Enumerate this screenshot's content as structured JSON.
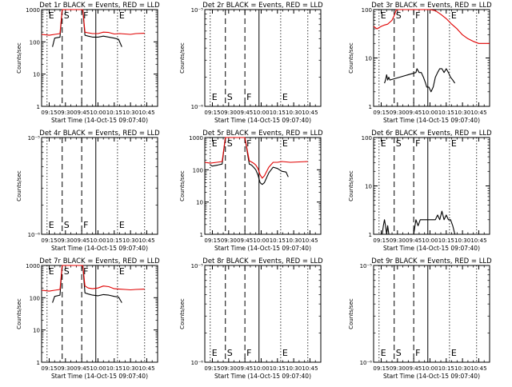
{
  "colors": {
    "events": "#000000",
    "lld": "#e00000",
    "axis": "#000000"
  },
  "common": {
    "xlabel": "Start Time (14-Oct-15 09:07:40)",
    "ylabel": "Counts/sec",
    "x_ticks": [
      "09:15",
      "09:30",
      "09:45",
      "10:00",
      "10:15",
      "10:30",
      "10:45"
    ],
    "x_ticks_min": [
      0,
      15,
      30,
      45,
      60,
      75,
      90
    ],
    "xlim_min": [
      -7,
      100
    ],
    "markers": [
      {
        "label": "E",
        "t": -2,
        "style": "dotted"
      },
      {
        "label": "S",
        "t": 12,
        "style": "dashed"
      },
      {
        "label": "F",
        "t": 30,
        "style": "dashed"
      },
      {
        "label": "",
        "t": 43,
        "style": "solid"
      },
      {
        "label": "E",
        "t": 63,
        "style": "dotted"
      },
      {
        "label": "",
        "t": 88,
        "style": "dotted"
      }
    ]
  },
  "chart_data": [
    {
      "type": "line",
      "title": "Det 1r BLACK = Events, RED = LLD",
      "yscale": "log",
      "ylim": [
        1,
        1000
      ],
      "y_ticks": [
        "1",
        "10",
        "100",
        "1000"
      ],
      "y_tick_values": [
        1,
        10,
        100,
        1000
      ],
      "series": [
        {
          "name": "Events",
          "color": "#000000",
          "x": [
            3,
            5,
            10,
            12,
            14,
            16,
            18,
            20,
            22,
            24,
            28,
            31,
            33,
            36,
            40,
            45,
            50,
            55,
            60,
            64,
            67
          ],
          "y": [
            70,
            130,
            140,
            1000,
            1000,
            1000,
            1000,
            1000,
            1000,
            1000,
            1000,
            1000,
            160,
            150,
            140,
            140,
            150,
            140,
            130,
            120,
            70
          ]
        },
        {
          "name": "LLD",
          "color": "#e00000",
          "x": [
            -7,
            0,
            5,
            10,
            12,
            14,
            20,
            25,
            28,
            31,
            33,
            36,
            40,
            45,
            50,
            55,
            60,
            65,
            70,
            75,
            80,
            88
          ],
          "y": [
            170,
            160,
            170,
            180,
            1000,
            1000,
            1000,
            1000,
            1000,
            1000,
            200,
            190,
            180,
            180,
            200,
            195,
            175,
            180,
            175,
            170,
            180,
            185
          ]
        }
      ]
    },
    {
      "type": "line",
      "title": "Det 2r BLACK = Events, RED = LLD",
      "yscale": "log",
      "ylim": [
        1e-06,
        1e-05
      ],
      "y_ticks": [
        "10⁻⁶",
        "10⁻⁵"
      ],
      "y_tick_values": [
        1e-06,
        1e-05
      ],
      "series": []
    },
    {
      "type": "line",
      "title": "Det 3r BLACK = Events, RED = LLD",
      "yscale": "log",
      "ylim": [
        1,
        100
      ],
      "y_ticks": [
        "1",
        "10",
        "100"
      ],
      "y_tick_values": [
        1,
        10,
        100
      ],
      "series": [
        {
          "name": "Events",
          "color": "#000000",
          "x": [
            3,
            4,
            5,
            6,
            7,
            8,
            32,
            33,
            35,
            37,
            39,
            41,
            42,
            44,
            46,
            48,
            50,
            52,
            54,
            56,
            58,
            60,
            62,
            64,
            66,
            68
          ],
          "y": [
            3,
            3.5,
            4.5,
            3.5,
            4,
            3.5,
            5,
            6,
            5,
            5,
            4,
            3,
            2.5,
            2.5,
            2,
            2.5,
            4,
            5,
            6,
            6,
            5,
            6,
            5,
            4,
            3.5,
            3
          ]
        },
        {
          "name": "LLD",
          "color": "#e00000",
          "x": [
            -7,
            -4,
            0,
            3,
            6,
            10,
            12,
            14,
            20,
            30,
            32,
            36,
            40,
            45,
            50,
            55,
            60,
            65,
            70,
            75,
            80,
            85,
            90,
            95,
            100
          ],
          "y": [
            45,
            40,
            45,
            48,
            50,
            60,
            75,
            100,
            100,
            100,
            100,
            100,
            100,
            100,
            95,
            80,
            65,
            50,
            40,
            30,
            25,
            22,
            20,
            20,
            20
          ]
        }
      ]
    },
    {
      "type": "line",
      "title": "Det 4r BLACK = Events, RED = LLD",
      "yscale": "log",
      "ylim": [
        1e-06,
        1e-05
      ],
      "y_ticks": [
        "10⁻⁶",
        "10⁻⁵"
      ],
      "y_tick_values": [
        1e-06,
        1e-05
      ],
      "series": []
    },
    {
      "type": "line",
      "title": "Det 5r BLACK = Events, RED = LLD",
      "yscale": "log",
      "ylim": [
        1,
        1000
      ],
      "y_ticks": [
        "1",
        "10",
        "100",
        "1000"
      ],
      "y_tick_values": [
        1,
        10,
        100,
        1000
      ],
      "series": [
        {
          "name": "Events",
          "color": "#000000",
          "x": [
            -2,
            0,
            5,
            9,
            12,
            20,
            28,
            30,
            34,
            36,
            38,
            40,
            42,
            44,
            46,
            48,
            52,
            56,
            60,
            64,
            68,
            70
          ],
          "y": [
            140,
            130,
            140,
            150,
            1000,
            1000,
            1000,
            1000,
            150,
            140,
            120,
            100,
            70,
            40,
            35,
            40,
            80,
            120,
            110,
            90,
            85,
            60
          ]
        },
        {
          "name": "LLD",
          "color": "#e00000",
          "x": [
            -7,
            -2,
            4,
            9,
            12,
            20,
            28,
            30,
            34,
            36,
            38,
            40,
            42,
            44,
            46,
            48,
            52,
            56,
            60,
            64,
            68,
            72,
            80,
            88
          ],
          "y": [
            170,
            160,
            170,
            180,
            1000,
            1000,
            1000,
            1000,
            190,
            175,
            160,
            140,
            110,
            70,
            55,
            65,
            120,
            170,
            170,
            180,
            175,
            170,
            175,
            180
          ]
        }
      ]
    },
    {
      "type": "line",
      "title": "Det 6r BLACK = Events, RED = LLD",
      "yscale": "log",
      "ylim": [
        1,
        100
      ],
      "y_ticks": [
        "1",
        "10",
        "100"
      ],
      "y_tick_values": [
        1,
        10,
        100
      ],
      "series": [
        {
          "name": "Events",
          "color": "#000000",
          "x": [
            1,
            2,
            3,
            4,
            5,
            6,
            7,
            8,
            10,
            15,
            20,
            25,
            30,
            32,
            34,
            36,
            40,
            45,
            50,
            52,
            54,
            56,
            58,
            60,
            62,
            64,
            66,
            68,
            70
          ],
          "y": [
            1,
            1.5,
            2,
            1.5,
            1,
            1.5,
            1,
            1,
            1,
            1,
            1,
            1,
            1,
            2,
            1.5,
            2,
            2,
            2,
            2,
            2.5,
            2,
            3,
            2,
            2.5,
            2,
            2,
            1.5,
            1,
            1
          ]
        }
      ]
    },
    {
      "type": "line",
      "title": "Det 7r BLACK = Events, RED = LLD",
      "yscale": "log",
      "ylim": [
        1,
        1000
      ],
      "y_ticks": [
        "1",
        "10",
        "100",
        "1000"
      ],
      "y_tick_values": [
        1,
        10,
        100,
        1000
      ],
      "series": [
        {
          "name": "Events",
          "color": "#000000",
          "x": [
            3,
            5,
            10,
            12,
            14,
            20,
            28,
            31,
            33,
            36,
            40,
            45,
            50,
            55,
            60,
            64,
            67
          ],
          "y": [
            70,
            110,
            120,
            1000,
            1000,
            1000,
            1000,
            1000,
            140,
            130,
            120,
            115,
            125,
            120,
            110,
            105,
            70
          ]
        },
        {
          "name": "LLD",
          "color": "#e00000",
          "x": [
            -7,
            0,
            5,
            10,
            12,
            14,
            20,
            28,
            31,
            33,
            36,
            40,
            45,
            50,
            55,
            60,
            65,
            70,
            75,
            80,
            88
          ],
          "y": [
            170,
            160,
            170,
            180,
            1000,
            1000,
            1000,
            1000,
            1000,
            230,
            200,
            190,
            200,
            230,
            220,
            190,
            185,
            180,
            175,
            180,
            185
          ]
        }
      ]
    },
    {
      "type": "line",
      "title": "Det 8r BLACK = Events, RED = LLD",
      "yscale": "log",
      "ylim": [
        1e-06,
        1e-05
      ],
      "y_ticks": [
        "10⁻⁶",
        "10⁻⁵"
      ],
      "y_tick_values": [
        1e-06,
        1e-05
      ],
      "series": []
    },
    {
      "type": "line",
      "title": "Det 9r BLACK = Events, RED = LLD",
      "yscale": "log",
      "ylim": [
        1e-06,
        1e-05
      ],
      "y_ticks": [
        "10⁻⁶",
        "10⁻⁵"
      ],
      "y_tick_values": [
        1e-06,
        1e-05
      ],
      "series": []
    }
  ]
}
